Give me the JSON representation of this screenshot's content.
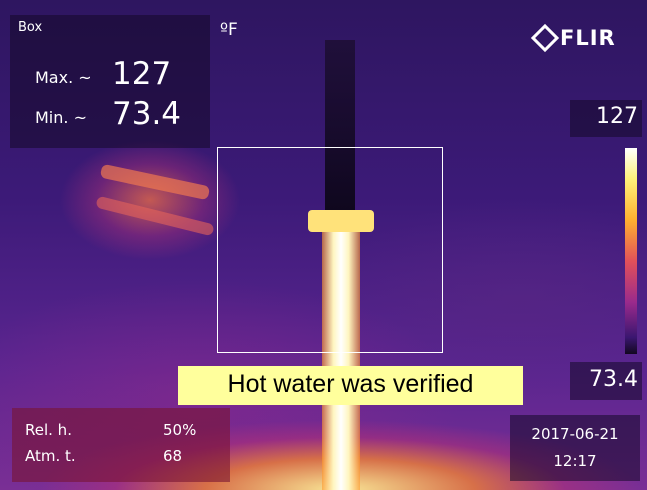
{
  "measurement": {
    "label": "Box",
    "max_label": "Max. ~",
    "max": 127,
    "min_label": "Min. ~",
    "min": 73.4
  },
  "unit": "ºF",
  "brand": "FLIR",
  "scale": {
    "max": 127,
    "min": 73.4
  },
  "caption": "Hot water was verified",
  "conditions": [
    {
      "label": "Rel. h.",
      "value": "50%"
    },
    {
      "label": "Atm. t.",
      "value": 68
    }
  ],
  "timestamp": {
    "date": "2017-06-21",
    "time": "12:17"
  }
}
